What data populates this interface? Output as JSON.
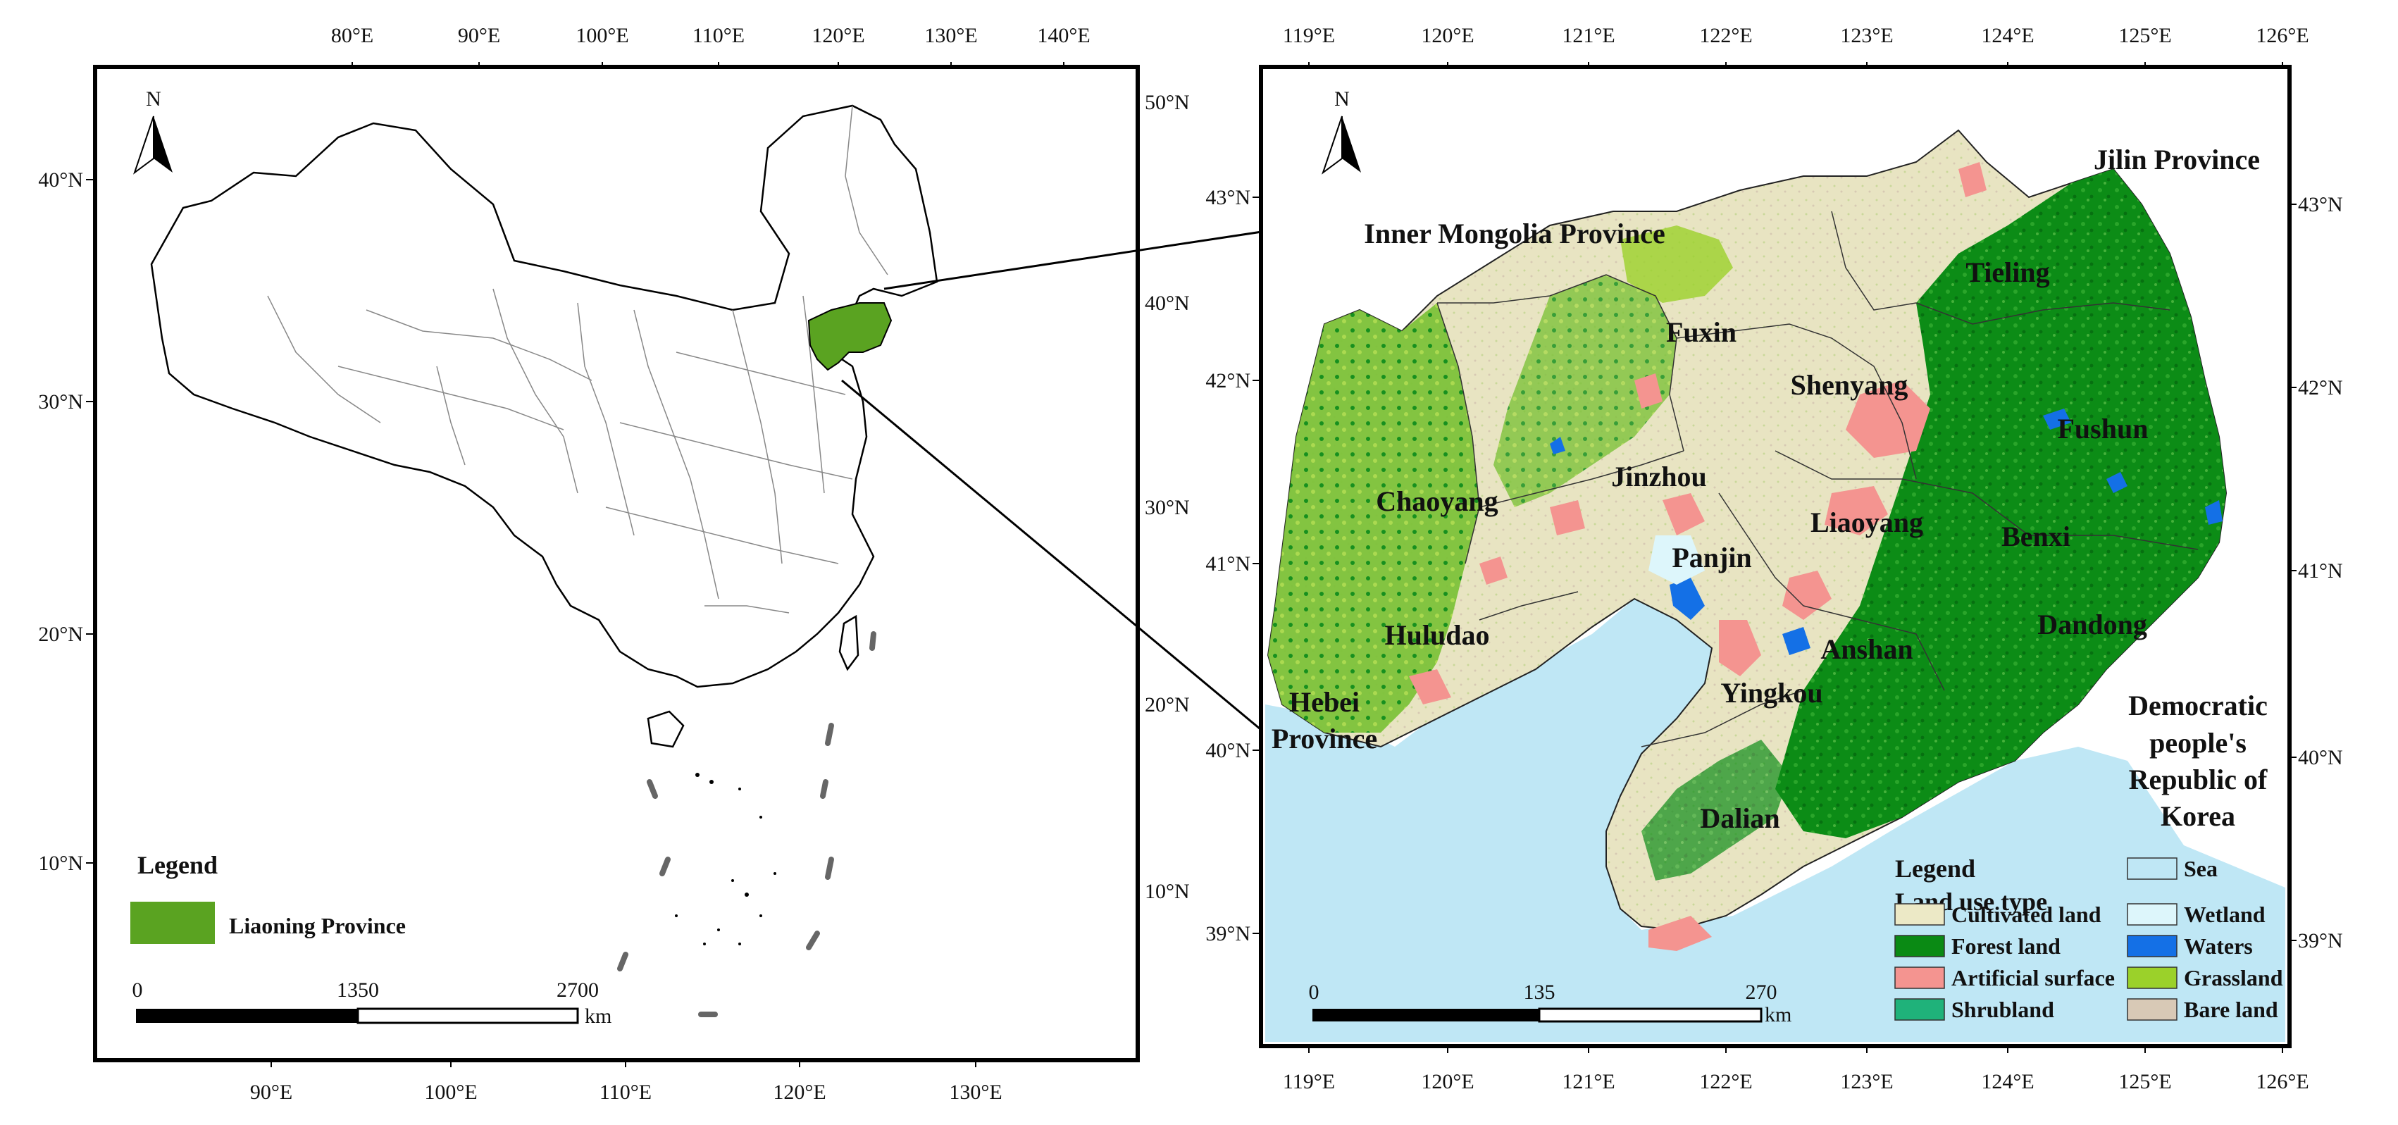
{
  "left_map": {
    "top_lon_ticks": [
      "80°E",
      "90°E",
      "100°E",
      "110°E",
      "120°E",
      "130°E",
      "140°E"
    ],
    "bottom_lon_ticks": [
      "90°E",
      "100°E",
      "110°E",
      "120°E",
      "130°E"
    ],
    "left_lat_ticks": [
      "40°N",
      "30°N",
      "20°N",
      "10°N"
    ],
    "right_lat_ticks": [
      "50°N",
      "40°N",
      "30°N",
      "20°N",
      "10°N"
    ],
    "north_label": "N",
    "legend": {
      "title": "Legend",
      "item": "Liaoning Province",
      "color": "#5aa321"
    },
    "scale": {
      "labels": [
        "0",
        "1350",
        "2700"
      ],
      "unit": "km"
    }
  },
  "right_map": {
    "top_lon_ticks": [
      "119°E",
      "120°E",
      "121°E",
      "122°E",
      "123°E",
      "124°E",
      "125°E",
      "126°E"
    ],
    "bottom_lon_ticks": [
      "119°E",
      "120°E",
      "121°E",
      "122°E",
      "123°E",
      "124°E",
      "125°E",
      "126°E"
    ],
    "left_lat_ticks": [
      "43°N",
      "42°N",
      "41°N",
      "40°N",
      "39°N"
    ],
    "right_lat_ticks": [
      "43°N",
      "42°N",
      "41°N",
      "40°N",
      "39°N"
    ],
    "north_label": "N",
    "regions": {
      "jilin": "Jilin Province",
      "inner_mongolia": "Inner Mongolia Province",
      "hebei_1": "Hebei",
      "hebei_2": "Province",
      "korea_1": "Democratic",
      "korea_2": "people's",
      "korea_3": "Republic of",
      "korea_4": "Korea"
    },
    "cities": {
      "tieling": "Tieling",
      "fuxin": "Fuxin",
      "shenyang": "Shenyang",
      "fushun": "Fushun",
      "jinzhou": "Jinzhou",
      "chaoyang": "Chaoyang",
      "liaoyang": "Liaoyang",
      "benxi": "Benxi",
      "panjin": "Panjin",
      "huludao": "Huludao",
      "dandong": "Dandong",
      "anshan": "Anshan",
      "yingkou": "Yingkou",
      "dalian": "Dalian"
    },
    "legend": {
      "title": "Legend",
      "subtitle": "Land use type",
      "items": [
        {
          "label": "Cultivated land",
          "color": "#ece9c6"
        },
        {
          "label": "Forest land",
          "color": "#0a8a14"
        },
        {
          "label": "Artificial surface",
          "color": "#f49490"
        },
        {
          "label": "Shrubland",
          "color": "#1fb27a"
        },
        {
          "label": "Sea",
          "color": "#bfe7f5"
        },
        {
          "label": "Wetland",
          "color": "#ddf6fb"
        },
        {
          "label": "Waters",
          "color": "#1470e6"
        },
        {
          "label": "Grassland",
          "color": "#9bd12a"
        },
        {
          "label": "Bare land",
          "color": "#d8c9b6"
        }
      ]
    },
    "scale": {
      "labels": [
        "0",
        "135",
        "270"
      ],
      "unit": "km"
    }
  }
}
